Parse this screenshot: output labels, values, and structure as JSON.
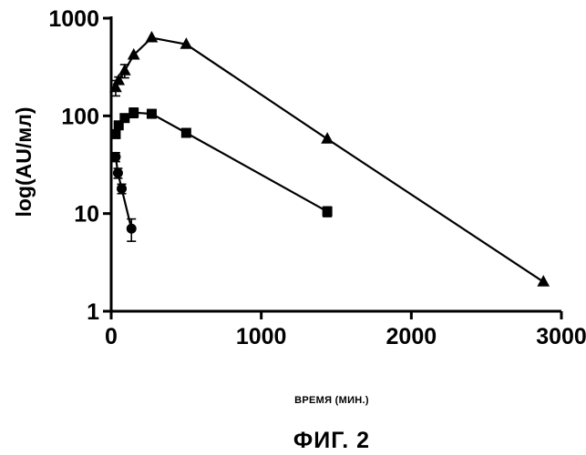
{
  "chart_data": {
    "type": "scatter",
    "title": "",
    "xlabel": "ВРЕМЯ (МИН.)",
    "ylabel": "log(AU/мл)",
    "xlim": [
      0,
      3000
    ],
    "ylim": [
      1,
      1000
    ],
    "yscale": "log",
    "grid": false,
    "legend": "none",
    "x_ticks": [
      0,
      1000,
      2000,
      3000
    ],
    "y_ticks": [
      1,
      10,
      100,
      1000
    ],
    "x_tick_labels": [
      "0",
      "1000",
      "2000",
      "3000"
    ],
    "y_tick_labels": [
      "1",
      "10",
      "100",
      "1000"
    ],
    "series": [
      {
        "marker": "circle",
        "points": [
          {
            "x": 30,
            "y": 38,
            "err": 4
          },
          {
            "x": 45,
            "y": 26,
            "err": 3
          },
          {
            "x": 70,
            "y": 18,
            "err": 2
          },
          {
            "x": 135,
            "y": 7,
            "err": 1.8
          }
        ]
      },
      {
        "marker": "square",
        "points": [
          {
            "x": 30,
            "y": 65,
            "err": 0
          },
          {
            "x": 50,
            "y": 80,
            "err": 0
          },
          {
            "x": 90,
            "y": 95,
            "err": 8
          },
          {
            "x": 150,
            "y": 108,
            "err": 12
          },
          {
            "x": 270,
            "y": 105,
            "err": 6
          },
          {
            "x": 500,
            "y": 67,
            "err": 0
          },
          {
            "x": 1440,
            "y": 10.5,
            "err": 1.2
          }
        ]
      },
      {
        "marker": "triangle",
        "points": [
          {
            "x": 30,
            "y": 195,
            "err": 35
          },
          {
            "x": 50,
            "y": 230,
            "err": 20
          },
          {
            "x": 90,
            "y": 290,
            "err": 45
          },
          {
            "x": 150,
            "y": 420,
            "err": 0
          },
          {
            "x": 270,
            "y": 630,
            "err": 0
          },
          {
            "x": 500,
            "y": 540,
            "err": 0
          },
          {
            "x": 1440,
            "y": 58,
            "err": 0
          },
          {
            "x": 2880,
            "y": 2,
            "err": 0
          }
        ]
      }
    ]
  },
  "figure": {
    "caption": "ФИГ. 2"
  }
}
